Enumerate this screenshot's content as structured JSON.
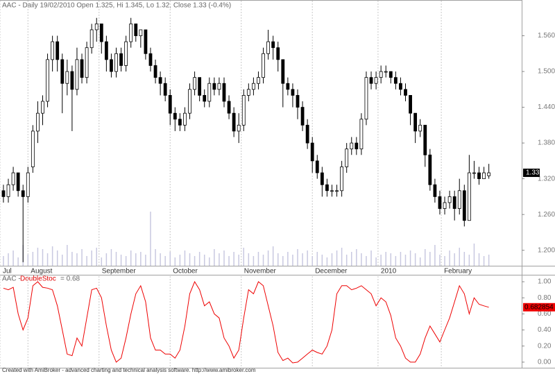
{
  "header": "AAC - Daily 19/02/2010 Open 1.325, Hi 1.345, Lo 1.32, Close 1.33 (-0.4%)",
  "footer": "Created with AmiBroker - advanced charting and technical analysis software. http://www.amibroker.com",
  "chart_data": [
    {
      "type": "candlestick",
      "up_color": "#ffffff",
      "down_color": "#000000",
      "volume_color": "#c8c8e0",
      "xlim": [
        -0.7,
        105.7
      ],
      "xticks": [
        {
          "value": -0.7,
          "label": "Jul"
        },
        {
          "value": 5,
          "label": "August"
        },
        {
          "value": 19.5,
          "label": "September"
        },
        {
          "value": 34,
          "label": "October"
        },
        {
          "value": 48.5,
          "label": "November"
        },
        {
          "value": 63,
          "label": "December"
        },
        {
          "value": 76.4,
          "label": "2010"
        },
        {
          "value": 89.3,
          "label": "February"
        }
      ],
      "ylim": [
        1.174,
        1.62
      ],
      "yticks": [
        {
          "value": 1.2,
          "label": "1.200"
        },
        {
          "value": 1.26,
          "label": "1.260"
        },
        {
          "value": 1.32,
          "label": "1.320"
        },
        {
          "value": 1.38,
          "label": "1.380"
        },
        {
          "value": 1.44,
          "label": "1.440"
        },
        {
          "value": 1.5,
          "label": "1.500"
        },
        {
          "value": 1.56,
          "label": "1.560"
        }
      ],
      "open": [
        1.3,
        1.29,
        1.31,
        1.33,
        1.3,
        1.29,
        1.34,
        1.4,
        1.43,
        1.45,
        1.52,
        1.55,
        1.52,
        1.48,
        1.5,
        1.47,
        1.52,
        1.49,
        1.54,
        1.57,
        1.58,
        1.55,
        1.52,
        1.5,
        1.53,
        1.51,
        1.55,
        1.58,
        1.56,
        1.57,
        1.53,
        1.51,
        1.49,
        1.48,
        1.46,
        1.43,
        1.42,
        1.41,
        1.43,
        1.47,
        1.49,
        1.46,
        1.45,
        1.48,
        1.47,
        1.48,
        1.45,
        1.43,
        1.4,
        1.41,
        1.46,
        1.47,
        1.48,
        1.49,
        1.53,
        1.55,
        1.54,
        1.52,
        1.48,
        1.47,
        1.46,
        1.44,
        1.41,
        1.38,
        1.35,
        1.33,
        1.31,
        1.3,
        1.3,
        1.3,
        1.34,
        1.37,
        1.38,
        1.37,
        1.42,
        1.49,
        1.48,
        1.49,
        1.5,
        1.5,
        1.49,
        1.48,
        1.47,
        1.46,
        1.43,
        1.4,
        1.41,
        1.36,
        1.31,
        1.29,
        1.27,
        1.28,
        1.29,
        1.27,
        1.3,
        1.25,
        1.33,
        1.33,
        1.32,
        1.325
      ],
      "high": [
        1.31,
        1.32,
        1.34,
        1.33,
        1.31,
        1.34,
        1.41,
        1.45,
        1.46,
        1.53,
        1.56,
        1.56,
        1.53,
        1.52,
        1.51,
        1.54,
        1.53,
        1.55,
        1.58,
        1.59,
        1.58,
        1.56,
        1.53,
        1.54,
        1.54,
        1.56,
        1.59,
        1.58,
        1.57,
        1.57,
        1.54,
        1.52,
        1.5,
        1.49,
        1.47,
        1.44,
        1.43,
        1.44,
        1.48,
        1.5,
        1.49,
        1.47,
        1.49,
        1.49,
        1.49,
        1.49,
        1.46,
        1.44,
        1.43,
        1.47,
        1.48,
        1.49,
        1.5,
        1.54,
        1.57,
        1.56,
        1.55,
        1.52,
        1.49,
        1.48,
        1.47,
        1.45,
        1.42,
        1.39,
        1.36,
        1.34,
        1.32,
        1.31,
        1.31,
        1.35,
        1.38,
        1.39,
        1.39,
        1.43,
        1.5,
        1.5,
        1.5,
        1.51,
        1.51,
        1.5,
        1.5,
        1.49,
        1.48,
        1.46,
        1.43,
        1.42,
        1.41,
        1.37,
        1.32,
        1.3,
        1.29,
        1.3,
        1.3,
        1.32,
        1.31,
        1.36,
        1.35,
        1.34,
        1.34,
        1.345
      ],
      "low": [
        1.28,
        1.28,
        1.3,
        1.29,
        1.18,
        1.28,
        1.33,
        1.38,
        1.41,
        1.44,
        1.5,
        1.5,
        1.43,
        1.46,
        1.4,
        1.46,
        1.48,
        1.48,
        1.53,
        1.55,
        1.53,
        1.5,
        1.49,
        1.49,
        1.5,
        1.5,
        1.54,
        1.55,
        1.54,
        1.52,
        1.5,
        1.48,
        1.46,
        1.45,
        1.41,
        1.4,
        1.4,
        1.4,
        1.42,
        1.46,
        1.45,
        1.44,
        1.44,
        1.46,
        1.46,
        1.44,
        1.42,
        1.39,
        1.38,
        1.4,
        1.45,
        1.46,
        1.47,
        1.48,
        1.52,
        1.52,
        1.5,
        1.44,
        1.46,
        1.44,
        1.42,
        1.4,
        1.37,
        1.33,
        1.32,
        1.29,
        1.29,
        1.29,
        1.29,
        1.29,
        1.33,
        1.36,
        1.36,
        1.36,
        1.41,
        1.47,
        1.47,
        1.48,
        1.49,
        1.48,
        1.47,
        1.46,
        1.45,
        1.41,
        1.38,
        1.39,
        1.34,
        1.3,
        1.28,
        1.26,
        1.26,
        1.27,
        1.25,
        1.26,
        1.24,
        1.25,
        1.32,
        1.31,
        1.32,
        1.32
      ],
      "close": [
        1.29,
        1.31,
        1.33,
        1.3,
        1.29,
        1.33,
        1.4,
        1.43,
        1.45,
        1.52,
        1.55,
        1.52,
        1.48,
        1.5,
        1.47,
        1.52,
        1.49,
        1.54,
        1.57,
        1.58,
        1.55,
        1.52,
        1.5,
        1.53,
        1.51,
        1.55,
        1.58,
        1.56,
        1.57,
        1.53,
        1.51,
        1.49,
        1.48,
        1.46,
        1.43,
        1.42,
        1.41,
        1.43,
        1.47,
        1.49,
        1.46,
        1.45,
        1.48,
        1.47,
        1.48,
        1.45,
        1.43,
        1.4,
        1.41,
        1.46,
        1.47,
        1.48,
        1.49,
        1.53,
        1.55,
        1.54,
        1.52,
        1.48,
        1.47,
        1.46,
        1.44,
        1.41,
        1.38,
        1.35,
        1.33,
        1.31,
        1.3,
        1.3,
        1.3,
        1.34,
        1.37,
        1.38,
        1.37,
        1.42,
        1.49,
        1.48,
        1.49,
        1.5,
        1.5,
        1.49,
        1.48,
        1.47,
        1.46,
        1.43,
        1.4,
        1.41,
        1.36,
        1.31,
        1.29,
        1.27,
        1.28,
        1.29,
        1.27,
        1.3,
        1.25,
        1.33,
        1.33,
        1.32,
        1.33,
        1.33
      ],
      "volume_lim": [
        0,
        100
      ],
      "volume": [
        14,
        18,
        22,
        12,
        30,
        16,
        20,
        26,
        24,
        18,
        28,
        22,
        16,
        30,
        20,
        18,
        24,
        14,
        22,
        26,
        12,
        18,
        24,
        20,
        16,
        14,
        22,
        18,
        20,
        16,
        78,
        24,
        18,
        14,
        20,
        12,
        16,
        22,
        18,
        14,
        20,
        16,
        12,
        24,
        18,
        22,
        14,
        20,
        16,
        26,
        18,
        14,
        20,
        16,
        22,
        28,
        18,
        14,
        20,
        16,
        24,
        18,
        22,
        14,
        20,
        16,
        12,
        18,
        22,
        26,
        16,
        20,
        24,
        18,
        14,
        22,
        12,
        16,
        20,
        18,
        14,
        20,
        16,
        22,
        18,
        12,
        24,
        20,
        30,
        16,
        14,
        22,
        18,
        26,
        20,
        16,
        32,
        18,
        14,
        16
      ]
    },
    {
      "type": "line",
      "title": "AAC -",
      "indicator": "DoubleStoc",
      "value_text": "= 0.68",
      "color": "#ee0000",
      "ylim": [
        -0.07,
        1.078
      ],
      "yticks": [
        {
          "value": 0,
          "label": "0.00"
        },
        {
          "value": 0.2,
          "label": "0.20"
        },
        {
          "value": 0.4,
          "label": "0.40"
        },
        {
          "value": 0.6,
          "label": "0.60"
        },
        {
          "value": 0.8,
          "label": "0.80"
        },
        {
          "value": 1,
          "label": "1.00"
        }
      ],
      "values": [
        0.92,
        0.9,
        0.93,
        0.6,
        0.4,
        0.55,
        0.95,
        1.0,
        0.93,
        0.92,
        0.9,
        0.7,
        0.4,
        0.1,
        0.08,
        0.3,
        0.2,
        0.55,
        0.9,
        0.92,
        0.8,
        0.45,
        0.15,
        0.0,
        0.05,
        0.3,
        0.6,
        0.85,
        0.95,
        0.75,
        0.3,
        0.15,
        0.15,
        0.1,
        0.1,
        0.05,
        0.15,
        0.45,
        0.85,
        1.0,
        0.9,
        0.7,
        0.75,
        0.6,
        0.55,
        0.3,
        0.2,
        0.05,
        0.15,
        0.55,
        0.9,
        0.85,
        1.0,
        0.95,
        0.7,
        0.45,
        0.12,
        0.02,
        0.05,
        -0.01,
        0.0,
        0.05,
        0.1,
        0.15,
        0.12,
        0.1,
        0.2,
        0.4,
        0.85,
        0.95,
        0.95,
        0.9,
        0.92,
        0.95,
        0.9,
        0.85,
        0.7,
        0.8,
        0.75,
        0.58,
        0.3,
        0.2,
        0.05,
        0.0,
        0.0,
        0.1,
        0.3,
        0.45,
        0.35,
        0.25,
        0.4,
        0.55,
        0.75,
        0.95,
        0.85,
        0.6,
        0.8,
        0.72,
        0.7,
        0.682854
      ]
    }
  ]
}
